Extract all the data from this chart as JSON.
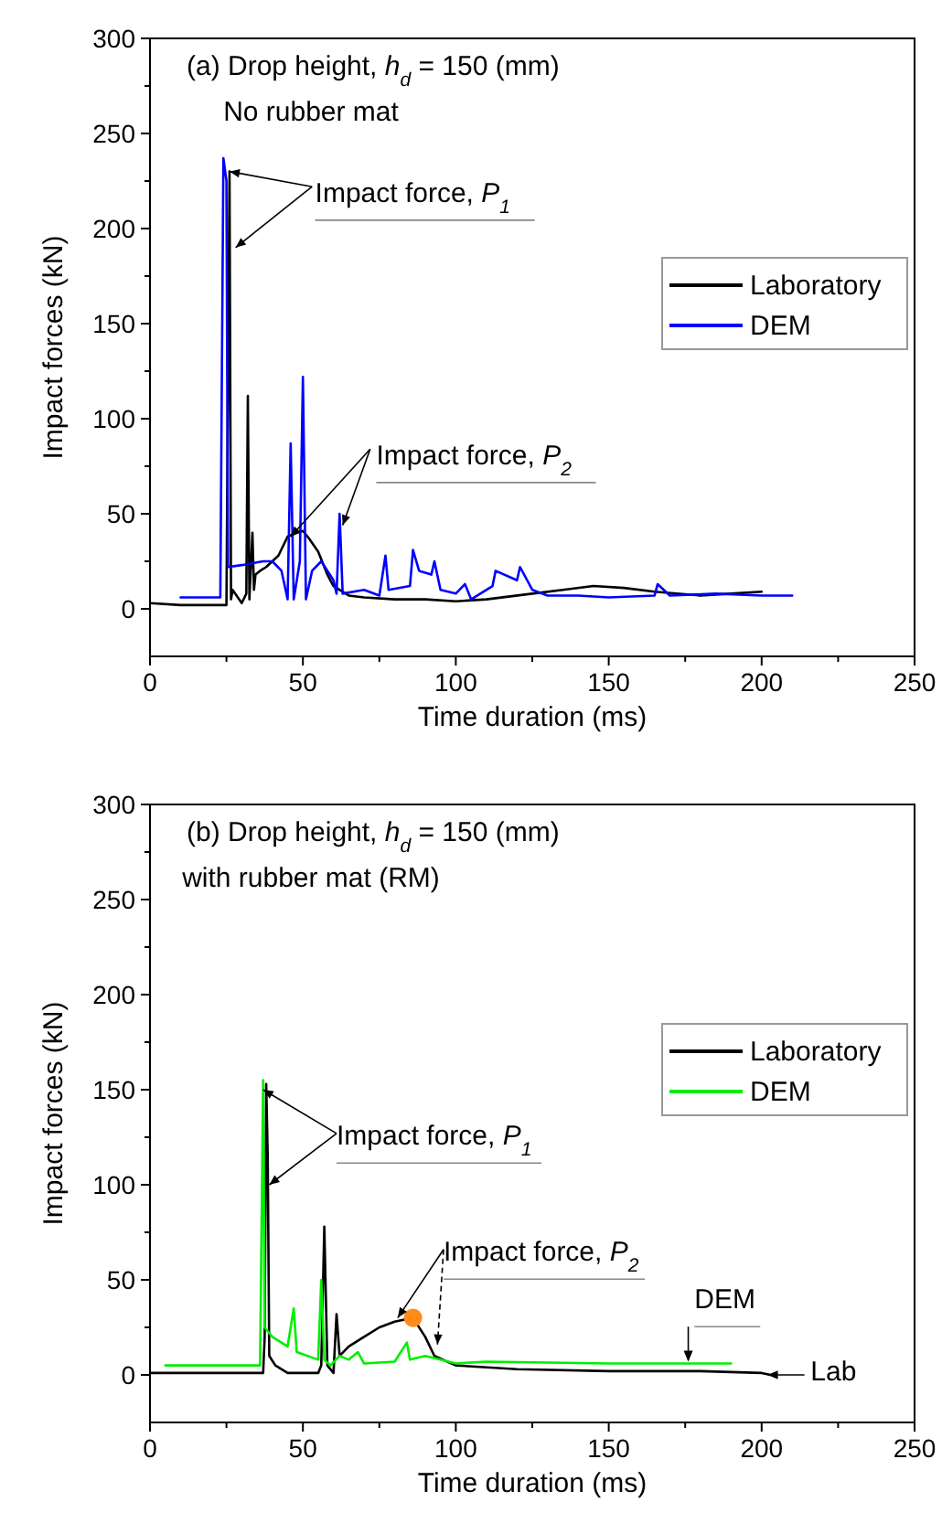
{
  "chart_data": [
    {
      "type": "line",
      "title": "(a) Drop height, h$_{d}$ = 150 (mm)",
      "subtitle": "No rubber mat",
      "xlabel": "Time duration (ms)",
      "ylabel": "Impact forces (kN)",
      "xlim": [
        0,
        250
      ],
      "xticks": [
        0,
        {
          "value": 25,
          "label": null
        },
        50,
        {
          "value": 75,
          "label": null
        },
        100,
        {
          "value": 125,
          "label": null
        },
        150,
        {
          "value": 175,
          "label": null
        },
        200,
        {
          "value": 225,
          "label": null
        },
        250
      ],
      "ylim": [
        -25,
        300
      ],
      "yticks": [
        0,
        {
          "value": 25,
          "label": null
        },
        50,
        {
          "value": 75,
          "label": null
        },
        100,
        {
          "value": 125,
          "label": null
        },
        150,
        {
          "value": 175,
          "label": null
        },
        200,
        {
          "value": 225,
          "label": null
        },
        250,
        {
          "value": 275,
          "label": null
        },
        300
      ],
      "grid": false,
      "legend": "right",
      "marker": "none",
      "line_style": "solid",
      "annotations": [
        {
          "text": "Impact force, P$_{1}$",
          "x": 26,
          "y": 230
        },
        {
          "text": "Impact force, P$_{2}$",
          "x": 46,
          "y": 38
        }
      ],
      "series": [
        {
          "name": "Laboratory",
          "color": "#000000",
          "x": [
            0,
            10,
            20,
            25,
            26,
            26.5,
            27,
            30,
            31.5,
            32,
            32.5,
            33.5,
            34,
            34.5,
            36,
            38,
            40,
            42,
            45,
            48,
            50,
            52,
            55,
            58,
            60,
            65,
            70,
            80,
            90,
            100,
            110,
            125,
            135,
            145,
            155,
            165,
            180,
            190,
            200
          ],
          "values": [
            3,
            2,
            2,
            2,
            230,
            5,
            10,
            3,
            8,
            112,
            5,
            40,
            10,
            18,
            20,
            22,
            25,
            28,
            38,
            40,
            41,
            37,
            30,
            18,
            12,
            7,
            6,
            5,
            5,
            4,
            5,
            8,
            10,
            12,
            11,
            9,
            7,
            8,
            9
          ]
        },
        {
          "name": "DEM",
          "color": "#0000ff",
          "x": [
            10,
            23,
            24,
            25,
            25.5,
            30,
            37,
            40,
            43,
            45,
            46,
            47,
            49,
            50,
            51,
            53,
            56,
            60,
            61,
            62,
            63,
            70,
            75,
            77,
            78,
            85,
            86,
            88,
            92,
            93,
            95,
            100,
            103,
            105,
            112,
            113,
            120,
            121,
            125,
            130,
            140,
            150,
            165,
            166,
            170,
            185,
            200,
            210
          ],
          "values": [
            6,
            6,
            237,
            225,
            22,
            23,
            25,
            25,
            20,
            5,
            87,
            5,
            25,
            122,
            5,
            20,
            25,
            15,
            8,
            50,
            8,
            10,
            7,
            28,
            10,
            12,
            31,
            20,
            18,
            25,
            10,
            8,
            13,
            5,
            12,
            20,
            15,
            22,
            10,
            7,
            7,
            6,
            7,
            13,
            7,
            8,
            7,
            7
          ]
        }
      ]
    },
    {
      "type": "line",
      "title": "(b) Drop height, h$_{d}$ = 150 (mm)",
      "subtitle": "with rubber mat (RM)",
      "xlabel": "Time duration (ms)",
      "ylabel": "Impact forces (kN)",
      "xlim": [
        0,
        250
      ],
      "xticks": [
        0,
        {
          "value": 25,
          "label": null
        },
        50,
        {
          "value": 75,
          "label": null
        },
        100,
        {
          "value": 125,
          "label": null
        },
        150,
        {
          "value": 175,
          "label": null
        },
        200,
        {
          "value": 225,
          "label": null
        },
        250
      ],
      "ylim": [
        -25,
        300
      ],
      "yticks": [
        0,
        {
          "value": 25,
          "label": null
        },
        50,
        {
          "value": 75,
          "label": null
        },
        100,
        {
          "value": 125,
          "label": null
        },
        150,
        {
          "value": 175,
          "label": null
        },
        200,
        {
          "value": 225,
          "label": null
        },
        250,
        {
          "value": 275,
          "label": null
        },
        300
      ],
      "grid": false,
      "legend": "right",
      "marker": "none",
      "line_style": "solid",
      "annotations": [
        {
          "text": "Impact force, P$_{1}$",
          "x": 37,
          "y": 150
        },
        {
          "text": "Impact force, P$_{2}$",
          "x": 81,
          "y": 30
        },
        {
          "text": "DEM",
          "x": 176,
          "y": 7
        },
        {
          "text": "Lab",
          "x": 202,
          "y": 0
        }
      ],
      "series": [
        {
          "name": "Laboratory",
          "color": "#000000",
          "x": [
            0,
            20,
            37,
            37.5,
            38,
            38.5,
            39,
            41,
            45,
            55,
            56,
            57,
            58,
            60,
            61,
            62,
            65,
            70,
            75,
            80,
            86,
            90,
            93,
            100,
            120,
            150,
            180,
            200,
            203
          ],
          "values": [
            1,
            1,
            1,
            20,
            153,
            115,
            10,
            5,
            1,
            1,
            5,
            78,
            5,
            1,
            32,
            10,
            15,
            20,
            25,
            28,
            30,
            20,
            10,
            5,
            3,
            2,
            2,
            1,
            0
          ]
        },
        {
          "name": "DEM",
          "color": "#00ee00",
          "x": [
            5,
            36,
            37,
            37.5,
            40,
            45,
            47,
            48,
            55,
            56,
            57,
            59,
            62,
            65,
            68,
            70,
            80,
            84,
            85,
            90,
            95,
            100,
            110,
            150,
            190
          ],
          "values": [
            5,
            5,
            155,
            25,
            20,
            15,
            35,
            12,
            8,
            50,
            8,
            5,
            10,
            8,
            12,
            6,
            7,
            17,
            8,
            10,
            8,
            6,
            7,
            6,
            6
          ]
        },
        {
          "type": "scatter",
          "color": "#ff8c1a",
          "marker": "circle",
          "x": [
            86
          ],
          "values": [
            30
          ]
        }
      ]
    }
  ]
}
